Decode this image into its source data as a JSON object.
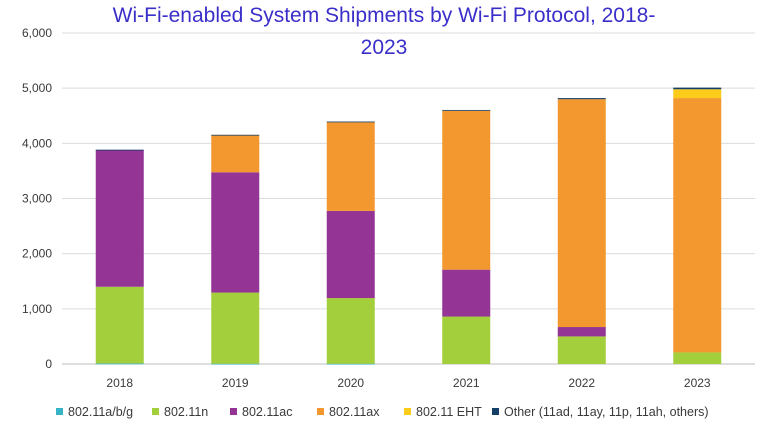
{
  "chart_data": {
    "type": "bar",
    "stacked": true,
    "title_lines": [
      "Wi-Fi-enabled System Shipments by Wi-Fi Protocol, 2018-",
      "2023"
    ],
    "xlabel": "",
    "ylabel": "",
    "categories": [
      "2018",
      "2019",
      "2020",
      "2021",
      "2022",
      "2023"
    ],
    "y_ticks": [
      "0",
      "1,000",
      "2,000",
      "3,000",
      "4,000",
      "5,000",
      "6,000"
    ],
    "ylim": [
      0,
      6000
    ],
    "grid": true,
    "legend_position": "bottom",
    "series": [
      {
        "name": "802.11a/b/g",
        "color": "#36b3c4",
        "values": [
          10,
          5,
          5,
          0,
          0,
          0
        ]
      },
      {
        "name": "802.11n",
        "color": "#a4cf3c",
        "values": [
          1390,
          1290,
          1190,
          860,
          500,
          210
        ]
      },
      {
        "name": "802.11ac",
        "color": "#943494",
        "values": [
          2480,
          2180,
          1580,
          850,
          170,
          0
        ]
      },
      {
        "name": "802.11ax",
        "color": "#f2982e",
        "values": [
          0,
          670,
          1610,
          2880,
          4130,
          4610
        ]
      },
      {
        "name": "802.11 EHT",
        "color": "#fdcc1a",
        "values": [
          0,
          0,
          0,
          0,
          0,
          160
        ]
      },
      {
        "name": "Other (11ad, 11ay, 11p, 11ah, others)",
        "color": "#133e66",
        "values": [
          5,
          10,
          10,
          15,
          20,
          30
        ]
      }
    ]
  }
}
